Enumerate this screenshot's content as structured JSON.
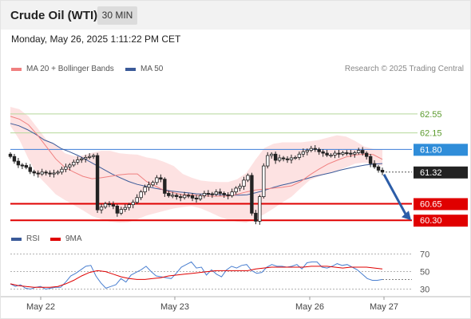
{
  "header": {
    "title": "Crude Oil (WTI)",
    "timeframe": "30 MIN",
    "datetime": "Monday, May 26, 2025 1:11:22 PM CET"
  },
  "legend": {
    "ma20": "MA 20 + Bollinger Bands",
    "ma50": "MA 50",
    "credit": "Research © 2025 Trading Central",
    "rsi": "RSI",
    "rsi_ma": "9MA"
  },
  "colors": {
    "ma20": "#f08080",
    "ma50": "#3b5a99",
    "bollinger_fill": "#fde2e2",
    "candle": "#222222",
    "resistance_lines": "#b5d89a",
    "current_level_line": "#3b7dd8",
    "support_lines": "#e00000",
    "current_price_tag": "#222222",
    "resistance_tag": "#2f8dd9",
    "support_tag": "#e00000",
    "arrow": "#2c5da8"
  },
  "chart_data": [
    {
      "type": "line",
      "title": "Crude Oil (WTI) 30 MIN",
      "x_tick_labels": [
        "May 22",
        "May 23",
        "May 26",
        "May 27"
      ],
      "ylim": [
        60.05,
        62.92
      ],
      "series": [
        {
          "name": "Price",
          "values": [
            61.65,
            61.55,
            61.47,
            61.46,
            61.42,
            61.33,
            61.3,
            61.28,
            61.32,
            61.3,
            61.28,
            61.3,
            61.32,
            61.38,
            61.43,
            61.47,
            61.53,
            61.58,
            61.6,
            61.63,
            61.65,
            61.67,
            60.52,
            60.58,
            60.65,
            60.63,
            60.6,
            60.45,
            60.53,
            60.57,
            60.63,
            60.68,
            60.78,
            60.9,
            61.0,
            61.05,
            61.1,
            61.2,
            61.17,
            60.87,
            60.82,
            60.83,
            60.8,
            60.78,
            60.83,
            60.82,
            60.77,
            60.75,
            60.82,
            60.87,
            60.86,
            60.85,
            60.9,
            60.87,
            60.84,
            60.82,
            60.9,
            60.98,
            61.02,
            61.15,
            61.25,
            60.45,
            60.28,
            60.8,
            61.45,
            61.67,
            61.7,
            61.57,
            61.62,
            61.6,
            61.58,
            61.62,
            61.63,
            61.7,
            61.75,
            61.78,
            61.82,
            61.8,
            61.75,
            61.72,
            61.68,
            61.68,
            61.72,
            61.7,
            61.73,
            61.72,
            61.7,
            61.73,
            61.78,
            61.72,
            61.65,
            61.5,
            61.43,
            61.36,
            61.32
          ]
        },
        {
          "name": "MA 20",
          "values": [
            62.5,
            62.44,
            62.32,
            62.1,
            61.85,
            61.6,
            61.42,
            61.32,
            61.23,
            61.18,
            61.2,
            61.23,
            61.26,
            61.28,
            61.28,
            61.12,
            61.02,
            60.93,
            60.88,
            60.84,
            60.84,
            60.82,
            60.81,
            60.81,
            60.81,
            60.85,
            60.9,
            60.94,
            60.96,
            60.98,
            61.0,
            61.03,
            61.12,
            61.26,
            61.38,
            61.49,
            61.57,
            61.64,
            61.68,
            61.7,
            61.69,
            61.59
          ]
        },
        {
          "name": "Bollinger Upper",
          "values": [
            62.7,
            62.65,
            62.5,
            62.25,
            62.0,
            61.9,
            61.72,
            61.66,
            61.67,
            61.73,
            61.77,
            61.77,
            61.72,
            61.7,
            61.69,
            61.63,
            61.6,
            61.53,
            61.45,
            61.28,
            61.2,
            61.14,
            61.12,
            61.11,
            61.11,
            61.17,
            61.3,
            61.58,
            61.83,
            61.92,
            61.95,
            61.95,
            61.95,
            61.97,
            62.0,
            62.05,
            62.1,
            62.07,
            61.98,
            61.86,
            61.81,
            61.8
          ]
        },
        {
          "name": "Bollinger Lower",
          "values": [
            62.3,
            62.0,
            61.6,
            61.25,
            61.05,
            60.85,
            60.73,
            60.62,
            60.51,
            60.39,
            60.32,
            60.27,
            60.25,
            60.26,
            60.32,
            60.4,
            60.45,
            60.5,
            60.55,
            60.58,
            60.6,
            60.55,
            60.47,
            60.38,
            60.31,
            60.27,
            60.25,
            60.33,
            60.43,
            60.55,
            60.68,
            60.8,
            60.98,
            61.15,
            61.23,
            61.3,
            61.35,
            61.42,
            61.5,
            61.52,
            61.5,
            61.45
          ]
        },
        {
          "name": "MA 50",
          "values": [
            62.35,
            62.3,
            62.22,
            62.12,
            62.0,
            61.93,
            61.82,
            61.75,
            61.67,
            61.58,
            61.48,
            61.38,
            61.28,
            61.2,
            61.12,
            61.06,
            61.02,
            60.98,
            60.95,
            60.92,
            60.9,
            60.88,
            60.86,
            60.85,
            60.85,
            60.84,
            60.83,
            60.83,
            60.84,
            60.88,
            60.93,
            60.99,
            61.04,
            61.08,
            61.13,
            61.18,
            61.23,
            61.27,
            61.31,
            61.36,
            61.4,
            61.44,
            61.47,
            61.49,
            61.5
          ]
        }
      ],
      "levels": [
        {
          "value": 62.55,
          "label": "62.55",
          "kind": "resistance"
        },
        {
          "value": 62.15,
          "label": "62.15",
          "kind": "resistance"
        },
        {
          "value": 61.8,
          "label": "61.80",
          "kind": "pivot"
        },
        {
          "value": 61.32,
          "label": "61.32",
          "kind": "current"
        },
        {
          "value": 60.65,
          "label": "60.65",
          "kind": "support"
        },
        {
          "value": 60.3,
          "label": "60.30",
          "kind": "support"
        }
      ],
      "arrow": {
        "from": 61.32,
        "to": 60.3,
        "direction": "down"
      }
    },
    {
      "type": "line",
      "title": "RSI",
      "ylim": [
        25,
        75
      ],
      "y_ticks": [
        30,
        50,
        70
      ],
      "series": [
        {
          "name": "RSI",
          "values": [
            36,
            33,
            35,
            31,
            30,
            32,
            33,
            30,
            31,
            32,
            32,
            38,
            45,
            48,
            52,
            56,
            57,
            45,
            37,
            31,
            33,
            35,
            42,
            38,
            46,
            49,
            52,
            56,
            50,
            45,
            44,
            43,
            42,
            48,
            55,
            58,
            61,
            54,
            55,
            46,
            52,
            47,
            44,
            52,
            56,
            54,
            57,
            58,
            51,
            48,
            49,
            55,
            58,
            56,
            56,
            55,
            56,
            58,
            53,
            60,
            61,
            61,
            55,
            54,
            56,
            59,
            57,
            58,
            55,
            52,
            47,
            42,
            40,
            40,
            41
          ]
        },
        {
          "name": "9MA",
          "values": [
            36,
            34,
            33,
            32,
            32,
            32,
            33,
            36,
            40,
            45,
            49,
            51,
            50,
            47,
            44,
            42,
            41,
            41,
            42,
            43,
            45,
            46,
            47,
            48,
            49,
            50,
            51,
            51,
            51,
            51,
            51,
            53,
            54,
            55,
            55,
            55,
            55,
            55,
            56,
            56,
            56,
            55,
            54,
            55,
            55,
            55,
            54,
            53
          ]
        }
      ]
    }
  ]
}
